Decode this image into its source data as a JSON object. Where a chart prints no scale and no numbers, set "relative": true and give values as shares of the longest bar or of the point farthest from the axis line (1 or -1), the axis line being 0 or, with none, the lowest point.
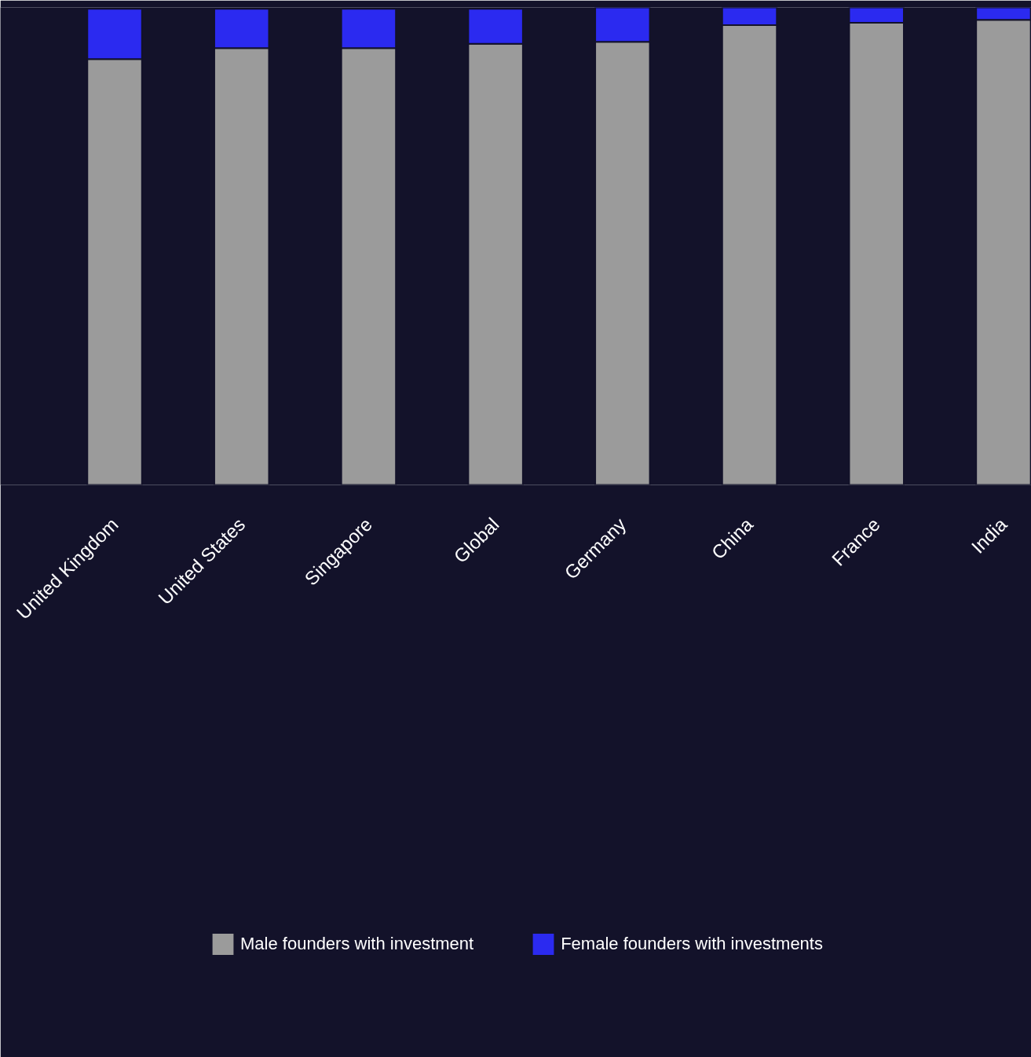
{
  "chart_data": {
    "type": "bar",
    "stacked": true,
    "relative": true,
    "legend": "bottom",
    "categories": [
      "United Kingdom",
      "United States",
      "Singapore",
      "Global",
      "Germany",
      "China",
      "France",
      "India"
    ],
    "series": [
      {
        "name": "Male founders with investment",
        "color": "#9b9b9b",
        "values": [
          0.892,
          0.915,
          0.915,
          0.924,
          0.928,
          0.963,
          0.968,
          0.974
        ]
      },
      {
        "name": "Female founders with investments",
        "color": "#2b2af0",
        "values": [
          0.105,
          0.082,
          0.082,
          0.073,
          0.072,
          0.037,
          0.032,
          0.026
        ]
      }
    ]
  }
}
